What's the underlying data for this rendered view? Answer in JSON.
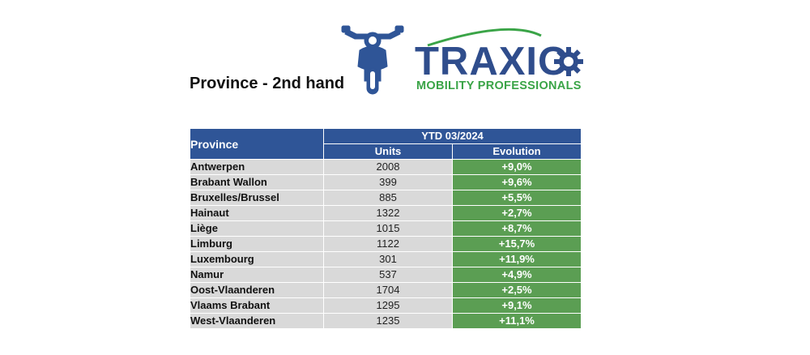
{
  "title": "Province - 2nd hand",
  "logo": {
    "name": "TRAXIO",
    "tagline": "MOBILITY PROFESSIONALS",
    "icon": "gear-icon",
    "colors": {
      "blue": "#2f4d8c",
      "green": "#3aa447"
    }
  },
  "motorcycle_icon": "motorcycle-icon",
  "table": {
    "header_province": "Province",
    "header_group": "YTD 03/2024",
    "header_units": "Units",
    "header_evolution": "Evolution",
    "rows": [
      {
        "province": "Antwerpen",
        "units": "2008",
        "evolution": "+9,0%"
      },
      {
        "province": "Brabant Wallon",
        "units": "399",
        "evolution": "+9,6%"
      },
      {
        "province": "Bruxelles/Brussel",
        "units": "885",
        "evolution": "+5,5%"
      },
      {
        "province": "Hainaut",
        "units": "1322",
        "evolution": "+2,7%"
      },
      {
        "province": "Liège",
        "units": "1015",
        "evolution": "+8,7%"
      },
      {
        "province": "Limburg",
        "units": "1122",
        "evolution": "+15,7%"
      },
      {
        "province": "Luxembourg",
        "units": "301",
        "evolution": "+11,9%"
      },
      {
        "province": "Namur",
        "units": "537",
        "evolution": "+4,9%"
      },
      {
        "province": "Oost-Vlaanderen",
        "units": "1704",
        "evolution": "+2,5%"
      },
      {
        "province": "Vlaams Brabant",
        "units": "1295",
        "evolution": "+9,1%"
      },
      {
        "province": "West-Vlaanderen",
        "units": "1235",
        "evolution": "+11,1%"
      }
    ],
    "colors": {
      "header": "#2f5597",
      "cell": "#d9d9d9",
      "evolution": "#5b9e53"
    }
  }
}
